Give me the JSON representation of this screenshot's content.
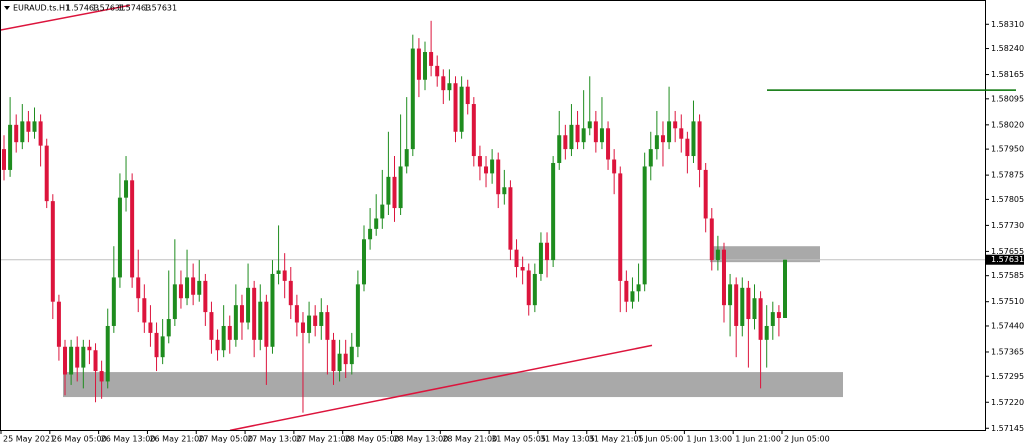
{
  "chart_data": {
    "type": "candlestick",
    "title": "EURAUD.ts.H1",
    "x": [
      "25 May 2021",
      null,
      null,
      null,
      null,
      null,
      null,
      null,
      "26 May 05:00",
      null,
      null,
      null,
      null,
      null,
      null,
      null,
      "26 May 13:00",
      null,
      null,
      null,
      null,
      null,
      null,
      null,
      "26 May 21:00",
      null,
      null,
      null,
      null,
      null,
      null,
      null,
      "27 May 05:00",
      null,
      null,
      null,
      null,
      null,
      null,
      null,
      "27 May 13:00",
      null,
      null,
      null,
      null,
      null,
      null,
      null,
      "27 May 21:00",
      null,
      null,
      null,
      null,
      null,
      null,
      null,
      "28 May 05:00",
      null,
      null,
      null,
      null,
      null,
      null,
      null,
      "28 May 13:00",
      null,
      null,
      null,
      null,
      null,
      null,
      null,
      "28 May 21:00",
      null,
      null,
      null,
      null,
      null,
      null,
      null,
      "31 May 05:05",
      null,
      null,
      null,
      null,
      null,
      null,
      null,
      "31 May 13:05",
      null,
      null,
      null,
      null,
      null,
      null,
      null,
      "31 May 21:05",
      null,
      null,
      null,
      null,
      null,
      null,
      null,
      "1 Jun 05:00",
      null,
      null,
      null,
      null,
      null,
      null,
      null,
      "1 Jun 13:00",
      null,
      null,
      null,
      null,
      null,
      null,
      null,
      "1 Jun 21:00",
      null,
      null,
      null,
      null,
      null,
      null,
      null,
      "2 Jun 05:00"
    ],
    "open": [
      1.5795,
      1.5789,
      1.5802,
      1.5797,
      1.5803,
      1.58,
      1.5803,
      1.5796,
      1.578,
      1.5751,
      1.5738,
      1.573,
      1.5738,
      1.5732,
      1.5738,
      1.5737,
      1.5731,
      1.5728,
      1.5744,
      1.5758,
      1.5781,
      1.5786,
      1.5758,
      1.5752,
      1.5745,
      1.5742,
      1.5735,
      1.5741,
      1.5746,
      1.5756,
      1.5752,
      1.5758,
      1.5753,
      1.5757,
      1.5748,
      1.574,
      1.5737,
      1.5744,
      1.574,
      1.575,
      1.5745,
      1.5755,
      1.574,
      1.5751,
      1.5738,
      1.5759,
      1.576,
      1.5757,
      1.575,
      1.5745,
      1.5742,
      1.5747,
      1.5744,
      1.5748,
      1.574,
      1.5731,
      1.5736,
      1.5733,
      1.5738,
      1.5756,
      1.5769,
      1.5772,
      1.5775,
      1.5779,
      1.5787,
      1.5778,
      1.579,
      1.5795,
      1.5824,
      1.5815,
      1.5823,
      1.5819,
      1.5816,
      1.5812,
      1.5814,
      1.58,
      1.5813,
      1.5808,
      1.5793,
      1.579,
      1.5788,
      1.5792,
      1.5782,
      1.5784,
      1.5766,
      1.5761,
      1.576,
      1.575,
      1.5759,
      1.5768,
      1.5763,
      1.5791,
      1.5799,
      1.5795,
      1.5802,
      1.5797,
      1.5801,
      1.5803,
      1.5797,
      1.5801,
      1.5792,
      1.5788,
      1.5757,
      1.5751,
      1.5754,
      1.5756,
      1.579,
      1.5795,
      1.5799,
      1.5797,
      1.5803,
      1.5801,
      1.5798,
      1.5793,
      1.5803,
      1.5789,
      1.5775,
      1.5763,
      1.5766,
      1.575,
      1.5756,
      1.5744,
      1.5755,
      1.5746,
      1.5752,
      1.574,
      1.5744,
      1.5748,
      1.57463
    ],
    "high": [
      1.5799,
      1.581,
      1.5805,
      1.5808,
      1.5806,
      1.5807,
      1.5805,
      1.5798,
      1.5782,
      1.5753,
      1.574,
      1.574,
      1.5741,
      1.574,
      1.574,
      1.5739,
      1.5734,
      1.5749,
      1.5767,
      1.5788,
      1.5793,
      1.5788,
      1.5766,
      1.5756,
      1.575,
      1.5745,
      1.5746,
      1.576,
      1.5769,
      1.576,
      1.5766,
      1.5762,
      1.5763,
      1.5759,
      1.5751,
      1.5743,
      1.575,
      1.5747,
      1.5756,
      1.5753,
      1.5762,
      1.5757,
      1.5756,
      1.5753,
      1.5763,
      1.5773,
      1.5765,
      1.5761,
      1.5753,
      1.5748,
      1.5751,
      1.575,
      1.5752,
      1.575,
      1.5742,
      1.574,
      1.574,
      1.5742,
      1.576,
      1.5773,
      1.5778,
      1.5782,
      1.5789,
      1.58,
      1.5793,
      1.5805,
      1.581,
      1.5828,
      1.5827,
      1.5826,
      1.5832,
      1.5822,
      1.5818,
      1.5818,
      1.5816,
      1.5816,
      1.5815,
      1.581,
      1.5796,
      1.5793,
      1.5795,
      1.5794,
      1.5789,
      1.5786,
      1.5769,
      1.5764,
      1.5762,
      1.5762,
      1.5771,
      1.5771,
      1.5793,
      1.5806,
      1.5802,
      1.5808,
      1.5806,
      1.5812,
      1.5816,
      1.5806,
      1.581,
      1.5803,
      1.5795,
      1.579,
      1.576,
      1.5758,
      1.5762,
      1.5794,
      1.58,
      1.5806,
      1.5803,
      1.5813,
      1.5806,
      1.5805,
      1.58,
      1.5809,
      1.5805,
      1.5791,
      1.5778,
      1.577,
      1.5768,
      1.5759,
      1.5758,
      1.5758,
      1.5757,
      1.5756,
      1.5754,
      1.575,
      1.5751,
      1.575,
      1.57631
    ],
    "low": [
      1.5786,
      1.5787,
      1.5794,
      1.5795,
      1.5797,
      1.5798,
      1.579,
      1.5778,
      1.5746,
      1.5734,
      1.5724,
      1.5727,
      1.5728,
      1.5726,
      1.5733,
      1.5722,
      1.5723,
      1.5726,
      1.5742,
      1.5755,
      1.5777,
      1.5755,
      1.5748,
      1.5742,
      1.5738,
      1.5731,
      1.5733,
      1.5739,
      1.5744,
      1.5749,
      1.575,
      1.575,
      1.5751,
      1.5744,
      1.5736,
      1.5734,
      1.5735,
      1.5736,
      1.5738,
      1.574,
      1.5743,
      1.5735,
      1.5737,
      1.5727,
      1.5736,
      1.5756,
      1.5752,
      1.5746,
      1.5741,
      1.5719,
      1.5739,
      1.5741,
      1.574,
      1.573,
      1.5727,
      1.5728,
      1.5729,
      1.573,
      1.5735,
      1.5754,
      1.5766,
      1.577,
      1.5772,
      1.5776,
      1.5774,
      1.5776,
      1.5788,
      1.5793,
      1.581,
      1.5812,
      1.5816,
      1.5813,
      1.5808,
      1.5809,
      1.5797,
      1.5798,
      1.5805,
      1.579,
      1.5786,
      1.5784,
      1.5785,
      1.5778,
      1.5779,
      1.5763,
      1.5758,
      1.5756,
      1.5747,
      1.5748,
      1.5757,
      1.5758,
      1.5761,
      1.5789,
      1.5792,
      1.5793,
      1.5795,
      1.5795,
      1.5799,
      1.5794,
      1.5795,
      1.5789,
      1.5782,
      1.5748,
      1.5748,
      1.5749,
      1.5751,
      1.5754,
      1.5786,
      1.5792,
      1.579,
      1.5795,
      1.5797,
      1.5794,
      1.5788,
      1.5791,
      1.5784,
      1.5771,
      1.576,
      1.576,
      1.5745,
      1.5741,
      1.5735,
      1.5741,
      1.5732,
      1.5743,
      1.5726,
      1.5732,
      1.574,
      1.5741,
      1.57463
    ],
    "close": [
      1.5789,
      1.5802,
      1.5797,
      1.5803,
      1.58,
      1.5803,
      1.5796,
      1.578,
      1.5751,
      1.5738,
      1.573,
      1.5738,
      1.5732,
      1.5738,
      1.5737,
      1.5731,
      1.5728,
      1.5744,
      1.5758,
      1.5781,
      1.5786,
      1.5758,
      1.5752,
      1.5745,
      1.5742,
      1.5735,
      1.5741,
      1.5746,
      1.5756,
      1.5752,
      1.5758,
      1.5753,
      1.5757,
      1.5748,
      1.574,
      1.5737,
      1.5744,
      1.574,
      1.575,
      1.5745,
      1.5755,
      1.574,
      1.5751,
      1.5738,
      1.5759,
      1.576,
      1.5757,
      1.575,
      1.5745,
      1.5742,
      1.5747,
      1.5744,
      1.5748,
      1.574,
      1.5731,
      1.5736,
      1.5733,
      1.5738,
      1.5756,
      1.5769,
      1.5772,
      1.5775,
      1.5779,
      1.5787,
      1.5778,
      1.579,
      1.5795,
      1.5824,
      1.5815,
      1.5823,
      1.5819,
      1.5816,
      1.5812,
      1.5814,
      1.58,
      1.5813,
      1.5808,
      1.5793,
      1.579,
      1.5788,
      1.5792,
      1.5782,
      1.5784,
      1.5766,
      1.5761,
      1.576,
      1.575,
      1.5759,
      1.5768,
      1.5763,
      1.5791,
      1.5799,
      1.5795,
      1.5802,
      1.5797,
      1.5801,
      1.5803,
      1.5797,
      1.5801,
      1.5792,
      1.5788,
      1.5757,
      1.5751,
      1.5754,
      1.5756,
      1.579,
      1.5795,
      1.5799,
      1.5797,
      1.5803,
      1.5801,
      1.5798,
      1.5793,
      1.5803,
      1.5789,
      1.5775,
      1.5763,
      1.5766,
      1.575,
      1.5756,
      1.5744,
      1.5755,
      1.5746,
      1.5752,
      1.574,
      1.5744,
      1.5748,
      1.57463,
      1.57631
    ],
    "up_color": "#1e8c1e",
    "down_color": "#dc143c",
    "ylim": [
      1.5714,
      1.5838
    ],
    "yticks": [
      {
        "value": 1.5831,
        "label": "1.58310"
      },
      {
        "value": 1.5824,
        "label": "1.58240"
      },
      {
        "value": 1.58165,
        "label": "1.58165"
      },
      {
        "value": 1.58095,
        "label": "1.58095"
      },
      {
        "value": 1.5802,
        "label": "1.58020"
      },
      {
        "value": 1.5795,
        "label": "1.57950"
      },
      {
        "value": 1.57875,
        "label": "1.57875"
      },
      {
        "value": 1.57805,
        "label": "1.57805"
      },
      {
        "value": 1.5773,
        "label": "1.57730"
      },
      {
        "value": 1.57655,
        "label": "1.57655"
      },
      {
        "value": 1.57585,
        "label": "1.57585"
      },
      {
        "value": 1.5751,
        "label": "1.57510"
      },
      {
        "value": 1.5744,
        "label": "1.57440"
      },
      {
        "value": 1.57365,
        "label": "1.57365"
      },
      {
        "value": 1.57295,
        "label": "1.57295"
      },
      {
        "value": 1.5722,
        "label": "1.57220"
      },
      {
        "value": 1.57145,
        "label": "1.57145"
      }
    ],
    "zones": [
      {
        "low": 1.57235,
        "high": 1.57307,
        "color": "#a9a9a9"
      },
      {
        "low": 1.57624,
        "high": 1.5767,
        "color": "#a9a9a9"
      }
    ],
    "trendlines": [
      {
        "from": 1.58293,
        "to": 1.58365,
        "color": "#dc143c"
      },
      {
        "from": 1.57139,
        "to": 1.57384,
        "color": "#dc143c"
      }
    ],
    "level": {
      "value": 1.5812,
      "color": "#007000"
    },
    "price_line_color": "#c0c0c0"
  }
}
